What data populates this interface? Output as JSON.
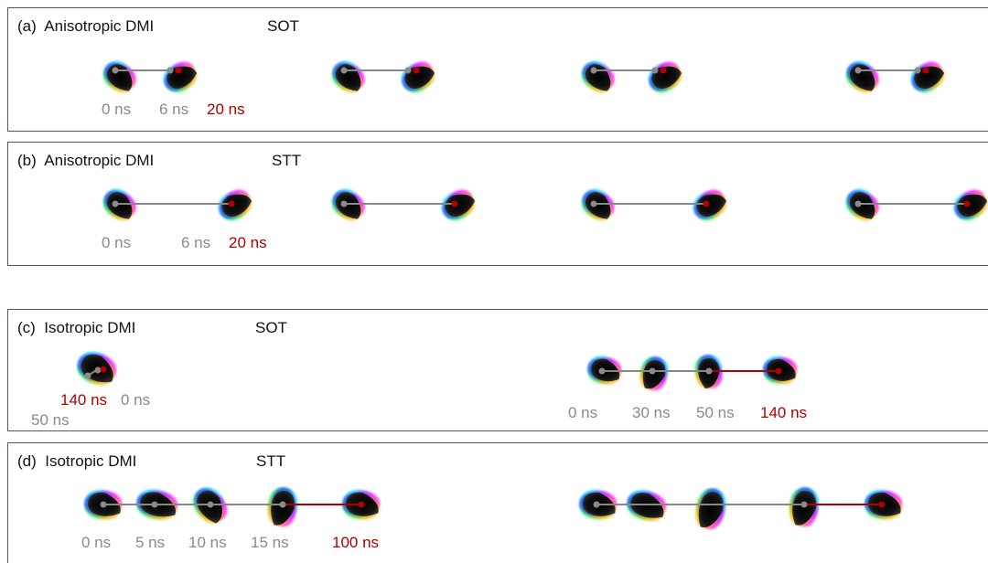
{
  "panels": {
    "a": {
      "label": "(a)  Anisotropic DMI",
      "torque": "SOT",
      "times": [
        "0 ns",
        "6 ns",
        "20 ns"
      ]
    },
    "b": {
      "label": "(b)  Anisotropic DMI",
      "torque": "STT",
      "times": [
        "0 ns",
        "6 ns",
        "20 ns"
      ]
    },
    "c": {
      "label": "(c)  Isotropic DMI",
      "torque": "SOT",
      "times_left": [
        "140 ns",
        "0 ns",
        "50 ns"
      ],
      "times_right": [
        "0 ns",
        "30 ns",
        "50 ns",
        "140 ns"
      ]
    },
    "d": {
      "label": "(d)  Isotropic DMI",
      "torque": "STT",
      "times": [
        "0 ns",
        "5 ns",
        "10 ns",
        "15 ns",
        "100 ns"
      ]
    }
  },
  "colors": {
    "early_time": "#8a8a8a",
    "final_time": "#b00000",
    "frame": "#4a5a6a"
  }
}
